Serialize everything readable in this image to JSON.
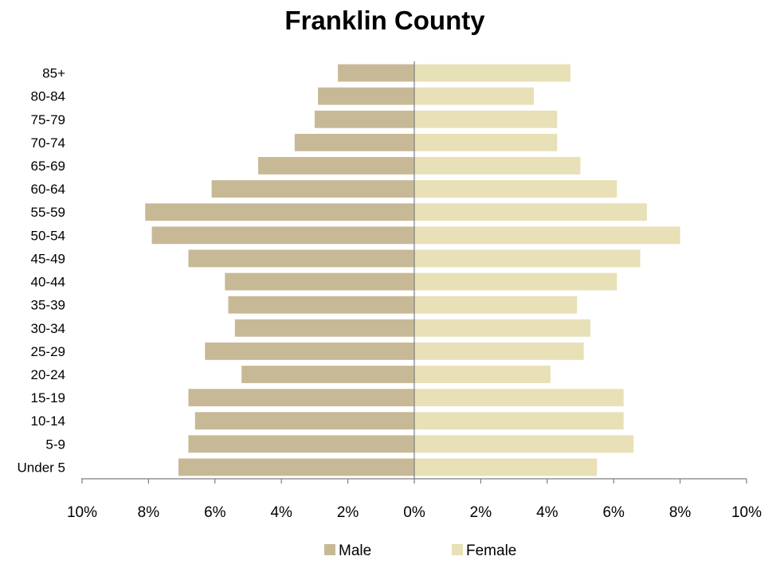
{
  "chart_data": {
    "type": "bar",
    "orientation": "horizontal",
    "layout": "population-pyramid",
    "title": "Franklin County",
    "categories": [
      "85+",
      "80-84",
      "75-79",
      "70-74",
      "65-69",
      "60-64",
      "55-59",
      "50-54",
      "45-49",
      "40-44",
      "35-39",
      "30-34",
      "25-29",
      "20-24",
      "15-19",
      "10-14",
      "5-9",
      "Under 5"
    ],
    "series": [
      {
        "name": "Male",
        "direction": "left",
        "color": "#c8b996",
        "values": [
          2.3,
          2.9,
          3.0,
          3.6,
          4.7,
          6.1,
          8.1,
          7.9,
          6.8,
          5.7,
          5.6,
          5.4,
          6.3,
          5.2,
          6.8,
          6.6,
          6.8,
          7.1
        ]
      },
      {
        "name": "Female",
        "direction": "right",
        "color": "#e8e0b6",
        "values": [
          4.7,
          3.6,
          4.3,
          4.3,
          5.0,
          6.1,
          7.0,
          8.0,
          6.8,
          6.1,
          4.9,
          5.3,
          5.1,
          4.1,
          6.3,
          6.3,
          6.6,
          5.5
        ]
      }
    ],
    "xlim": [
      -10,
      10
    ],
    "x_ticks": [
      -10,
      -8,
      -6,
      -4,
      -2,
      0,
      2,
      4,
      6,
      8,
      10
    ],
    "x_tick_labels": [
      "10%",
      "8%",
      "6%",
      "4%",
      "2%",
      "0%",
      "2%",
      "4%",
      "6%",
      "8%",
      "10%"
    ],
    "xlabel": "",
    "ylabel": "",
    "grid": false,
    "legend_position": "bottom",
    "axis_color": "#7f7f7f"
  }
}
